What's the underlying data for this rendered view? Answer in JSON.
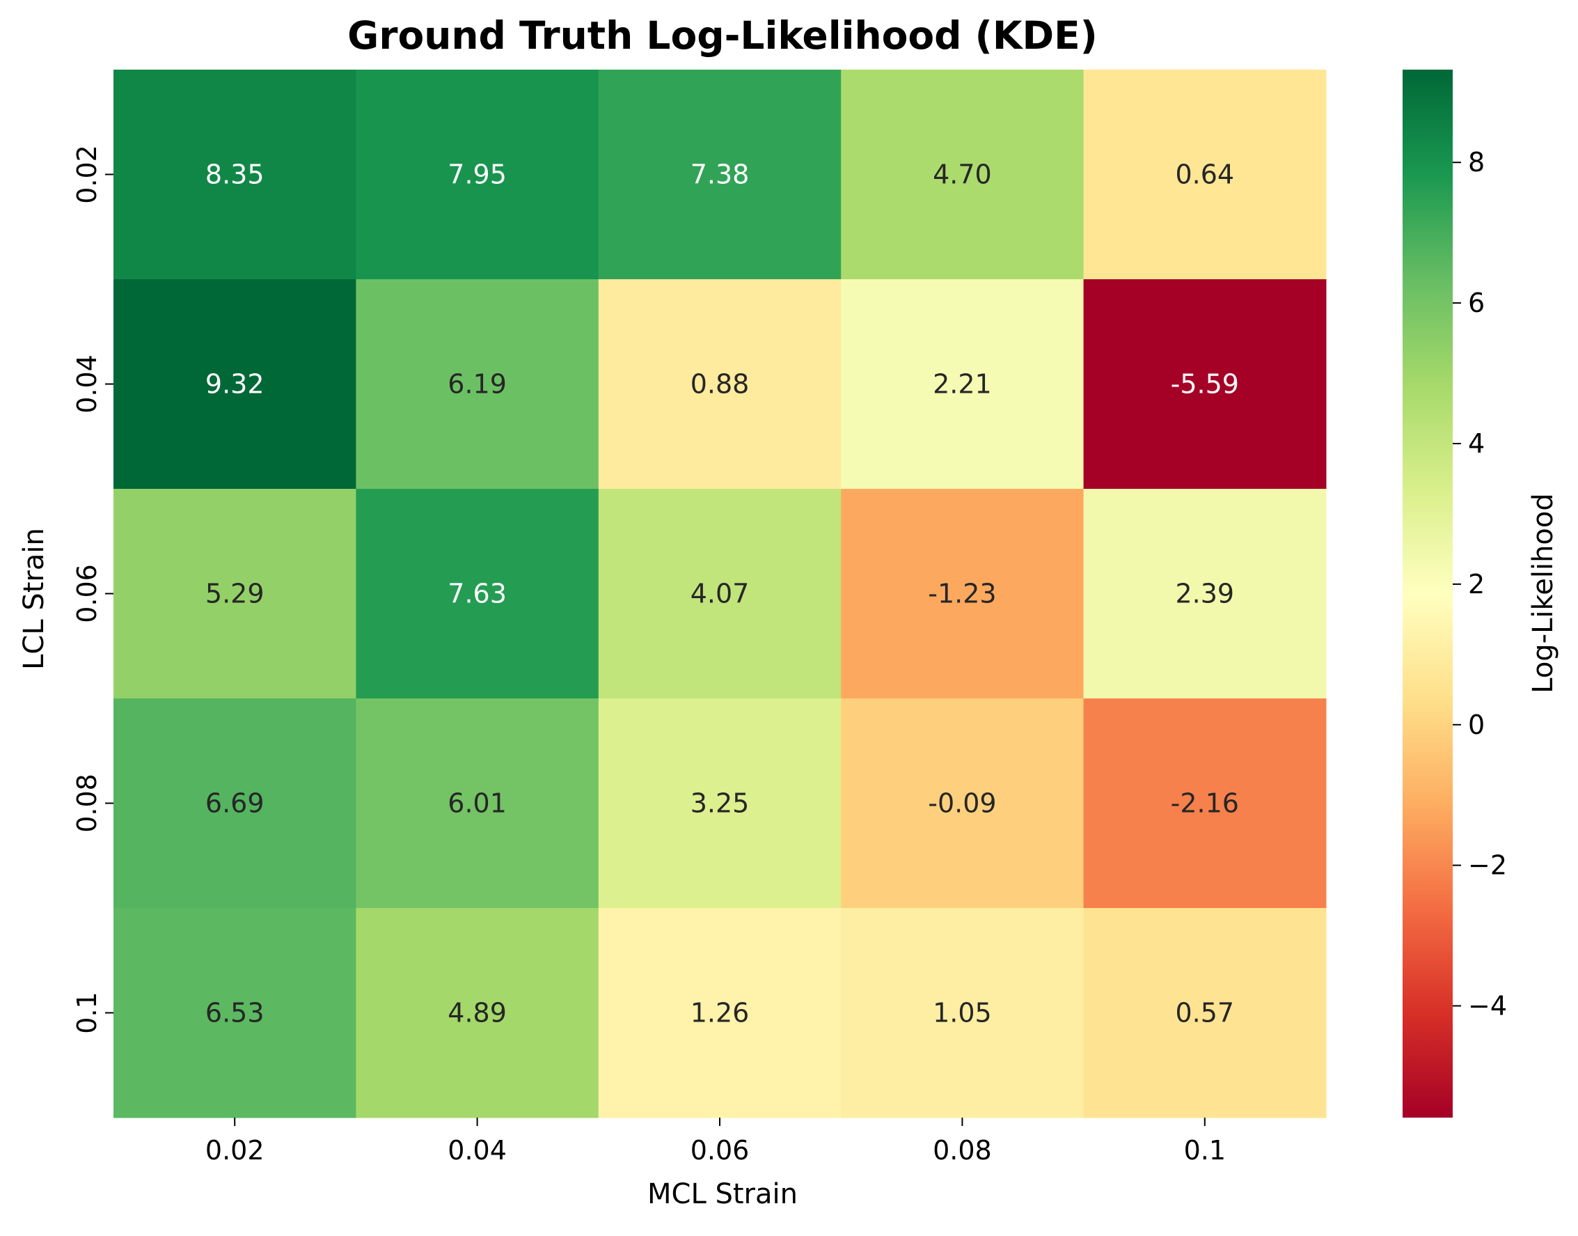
{
  "chart_data": {
    "type": "heatmap",
    "title": "Ground Truth Log-Likelihood (KDE)",
    "xlabel": "MCL Strain",
    "ylabel": "LCL Strain",
    "x_categories": [
      "0.02",
      "0.04",
      "0.06",
      "0.08",
      "0.1"
    ],
    "y_categories": [
      "0.02",
      "0.04",
      "0.06",
      "0.08",
      "0.1"
    ],
    "values": [
      [
        8.35,
        7.95,
        7.38,
        4.7,
        0.64
      ],
      [
        9.32,
        6.19,
        0.88,
        2.21,
        -5.59
      ],
      [
        5.29,
        7.63,
        4.07,
        -1.23,
        2.39
      ],
      [
        6.69,
        6.01,
        3.25,
        -0.09,
        -2.16
      ],
      [
        6.53,
        4.89,
        1.26,
        1.05,
        0.57
      ]
    ],
    "value_labels": [
      [
        "8.35",
        "7.95",
        "7.38",
        "4.70",
        "0.64"
      ],
      [
        "9.32",
        "6.19",
        "0.88",
        "2.21",
        "-5.59"
      ],
      [
        "5.29",
        "7.63",
        "4.07",
        "-1.23",
        "2.39"
      ],
      [
        "6.69",
        "6.01",
        "3.25",
        "-0.09",
        "-2.16"
      ],
      [
        "6.53",
        "4.89",
        "1.26",
        "1.05",
        "0.57"
      ]
    ],
    "colormap": "RdYlGn",
    "color_range": [
      -5.59,
      9.32
    ],
    "colorbar": {
      "label": "Log-Likelihood",
      "ticks": [
        -4,
        -2,
        0,
        2,
        4,
        6,
        8
      ],
      "tick_labels": [
        "−4",
        "−2",
        "0",
        "2",
        "4",
        "6",
        "8"
      ]
    }
  }
}
